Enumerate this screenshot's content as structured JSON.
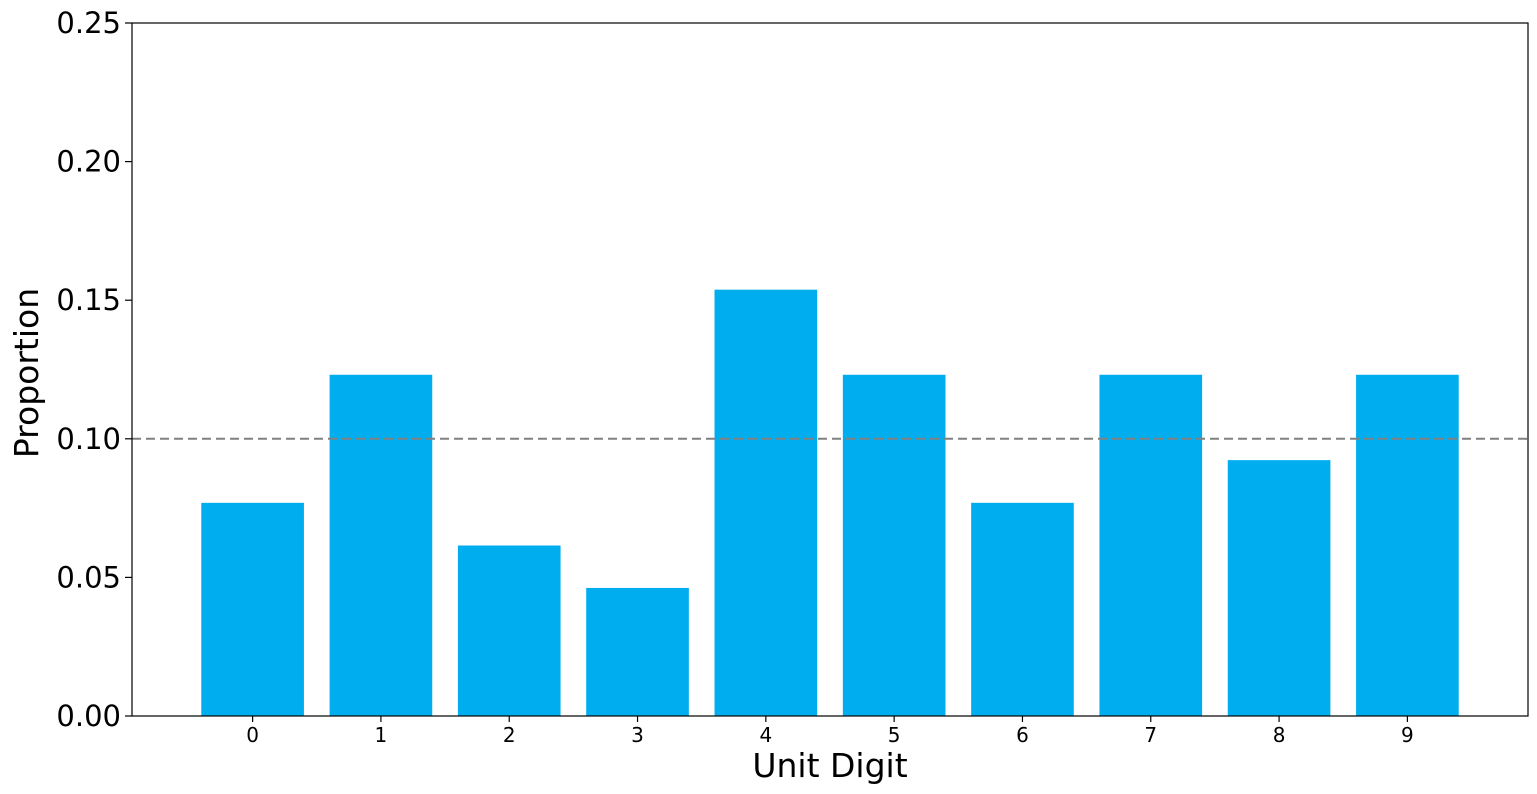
{
  "chart_data": {
    "type": "bar",
    "title": "",
    "xlabel": "Unit Digit",
    "ylabel": "Proportion",
    "categories": [
      "0",
      "1",
      "2",
      "3",
      "4",
      "5",
      "6",
      "7",
      "8",
      "9"
    ],
    "values": [
      0.0769,
      0.1231,
      0.0615,
      0.0462,
      0.1538,
      0.1231,
      0.0769,
      0.1231,
      0.0923,
      0.1231
    ],
    "ylim": [
      0,
      0.25
    ],
    "yticks": [
      "0.00",
      "0.05",
      "0.10",
      "0.15",
      "0.20",
      "0.25"
    ],
    "reference_line": {
      "y": 0.1,
      "style": "dashed",
      "color": "#808080"
    },
    "bar_color": "#00aeef",
    "grid": false,
    "legend": "none"
  }
}
